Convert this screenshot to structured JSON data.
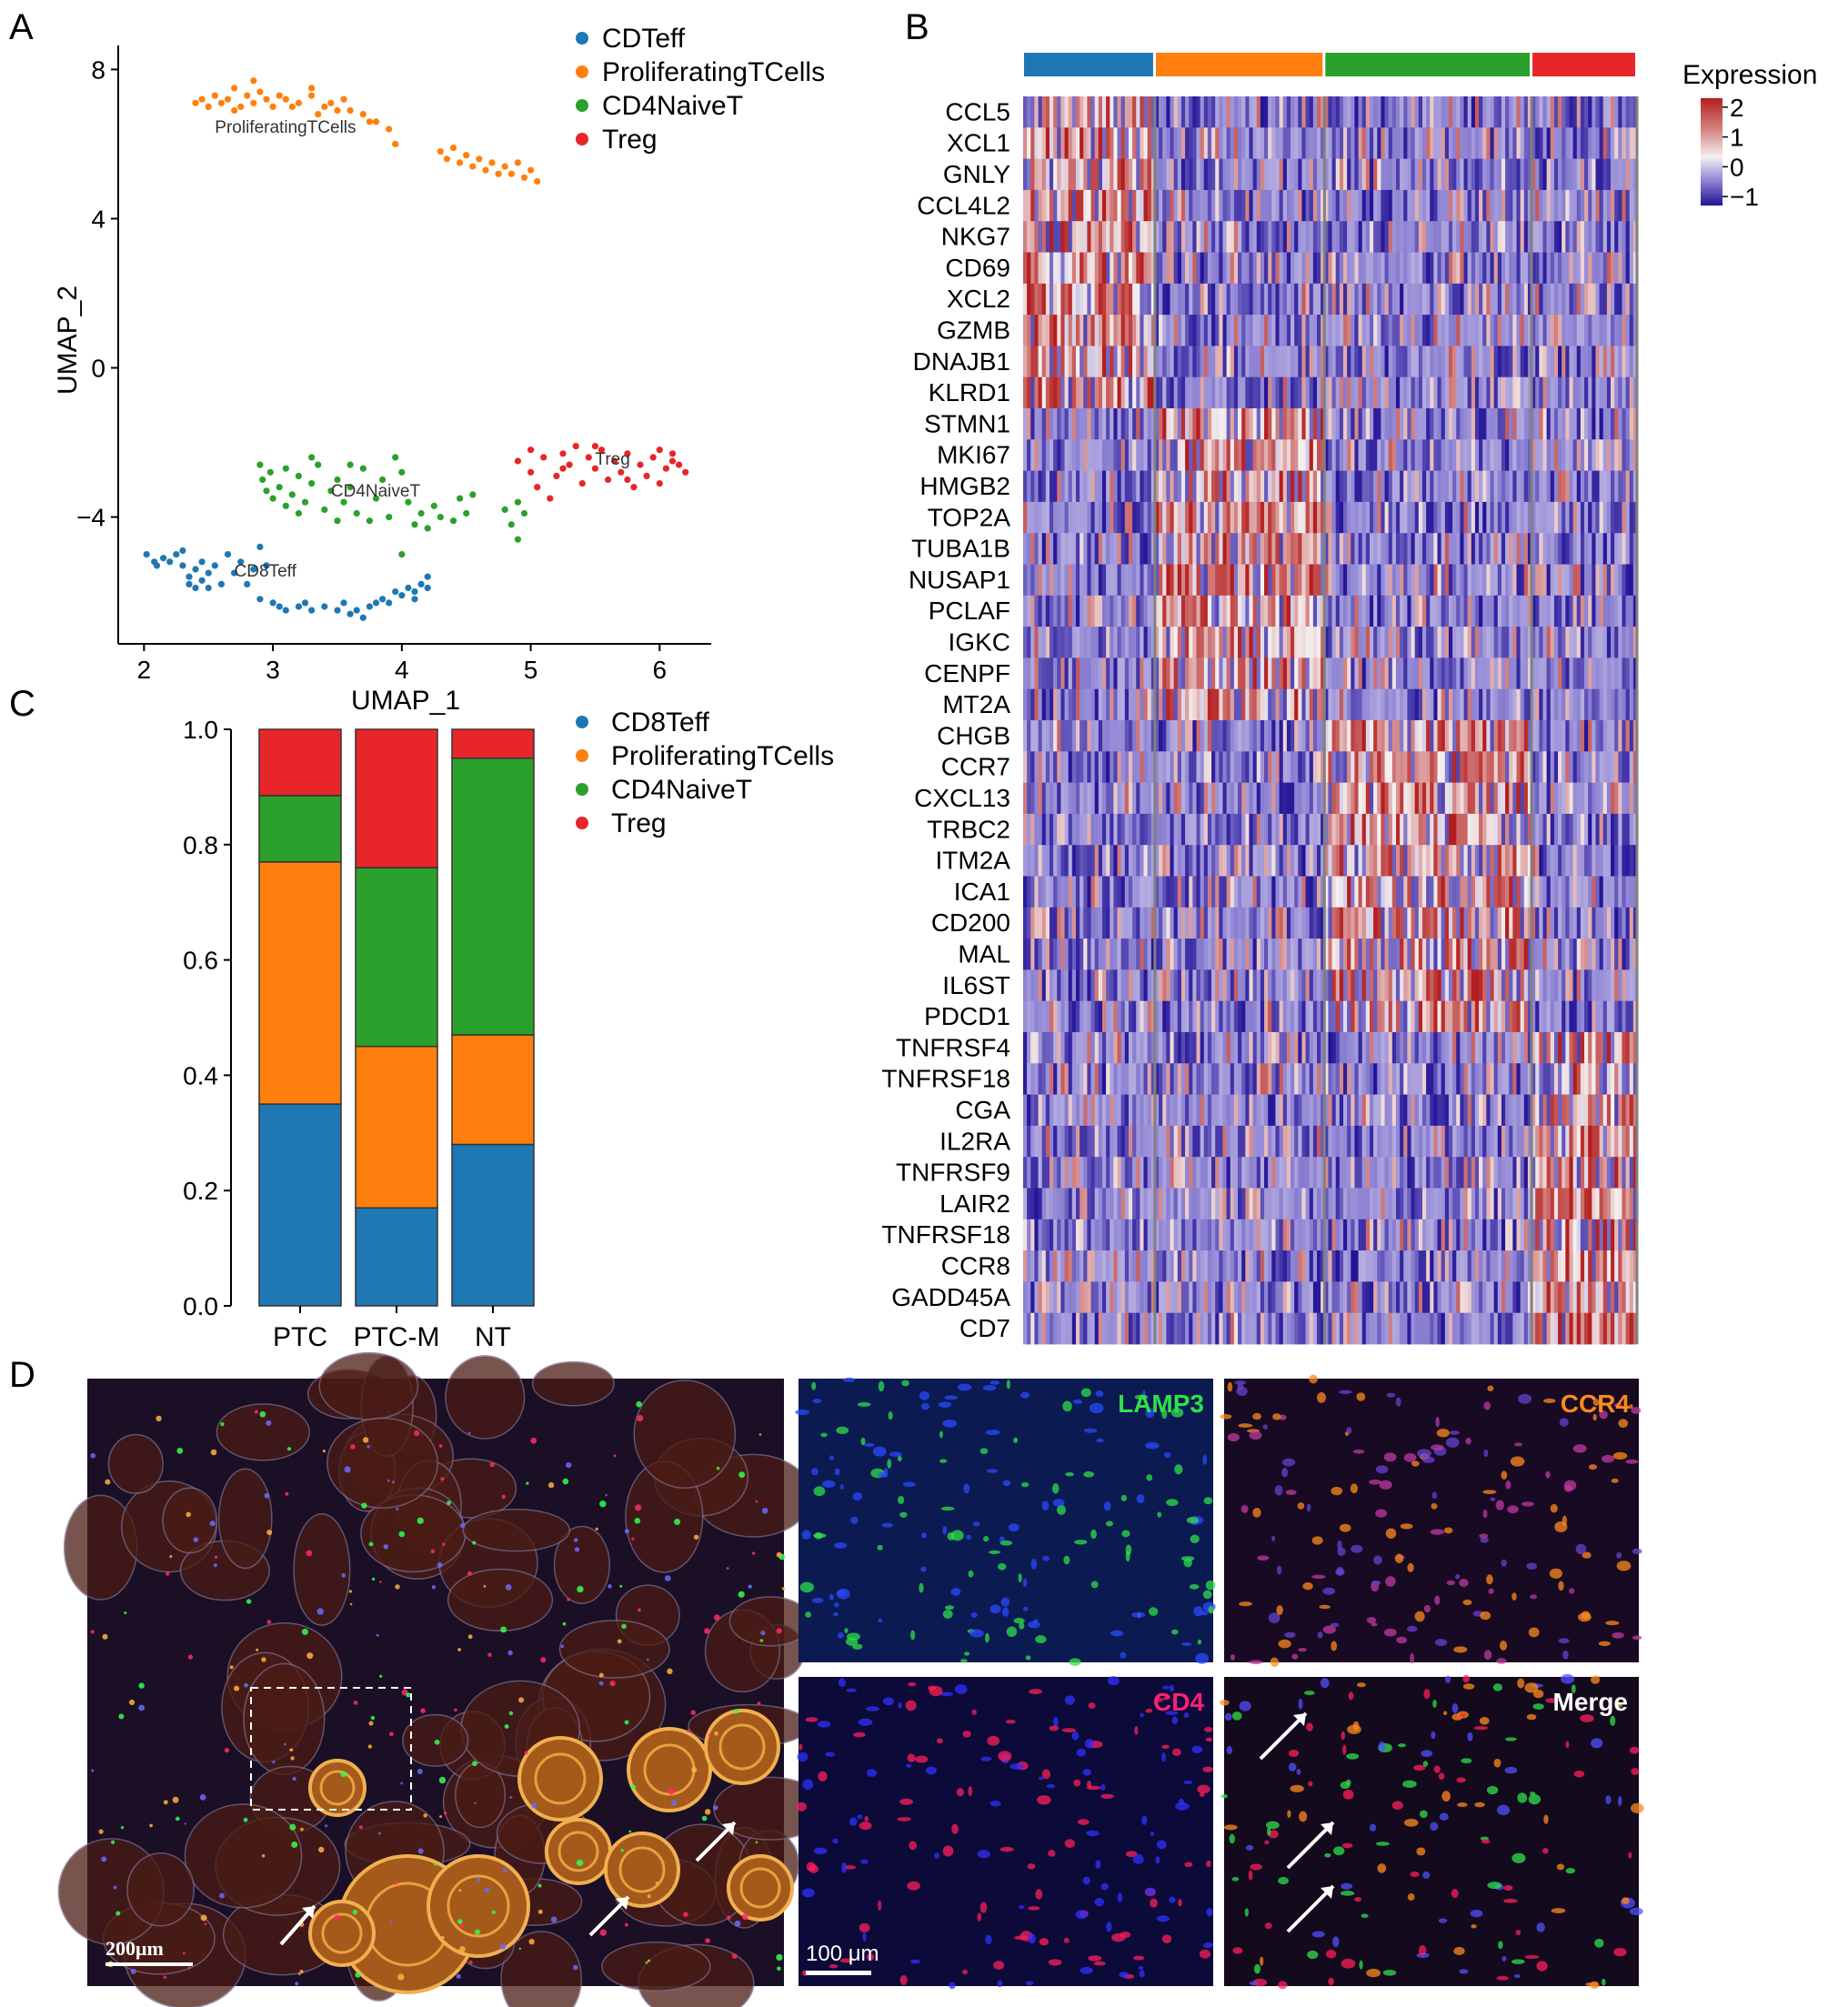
{
  "panels": {
    "a": "A",
    "b": "B",
    "c": "C",
    "d": "D"
  },
  "colors": {
    "cd8": "#1f77b4",
    "prolif": "#ff7f0e",
    "cd4": "#2ca02c",
    "treg": "#e8262a"
  },
  "umap": {
    "chart_data": {
      "type": "scatter",
      "xlabel": "UMAP_1",
      "ylabel": "UMAP_2",
      "xlim": [
        1.8,
        6.4
      ],
      "ylim": [
        -7.4,
        8.4
      ],
      "xticks": [
        "2",
        "3",
        "4",
        "5",
        "6"
      ],
      "yticks": [
        "8",
        "4",
        "0",
        "−4"
      ],
      "legend_position": "right",
      "legend": [
        "CDTeff",
        "ProliferatingTCells",
        "CD4NaiveT",
        "Treg"
      ],
      "cluster_labels": [
        "ProliferatingTCells",
        "CD4NaiveT",
        "Treg",
        "CD8Teff"
      ],
      "series": [
        {
          "name": "CDTeff",
          "color": "#1f77b4",
          "points": [
            [
              2.02,
              -5.0
            ],
            [
              2.08,
              -5.2
            ],
            [
              2.1,
              -5.3
            ],
            [
              2.15,
              -5.1
            ],
            [
              2.2,
              -5.2
            ],
            [
              2.25,
              -5.0
            ],
            [
              2.3,
              -5.3
            ],
            [
              2.3,
              -4.9
            ],
            [
              2.35,
              -5.6
            ],
            [
              2.35,
              -5.8
            ],
            [
              2.4,
              -5.9
            ],
            [
              2.4,
              -5.4
            ],
            [
              2.45,
              -5.2
            ],
            [
              2.45,
              -5.7
            ],
            [
              2.5,
              -5.9
            ],
            [
              2.5,
              -5.5
            ],
            [
              2.55,
              -5.3
            ],
            [
              2.6,
              -5.8
            ],
            [
              2.65,
              -5.0
            ],
            [
              2.7,
              -5.5
            ],
            [
              2.75,
              -5.2
            ],
            [
              2.8,
              -5.8
            ],
            [
              2.85,
              -5.4
            ],
            [
              2.9,
              -4.8
            ],
            [
              2.95,
              -5.3
            ],
            [
              2.9,
              -6.2
            ],
            [
              3.0,
              -6.3
            ],
            [
              3.05,
              -6.4
            ],
            [
              3.1,
              -6.5
            ],
            [
              3.2,
              -6.4
            ],
            [
              3.25,
              -6.3
            ],
            [
              3.3,
              -6.5
            ],
            [
              3.4,
              -6.4
            ],
            [
              3.5,
              -6.5
            ],
            [
              3.55,
              -6.3
            ],
            [
              3.6,
              -6.6
            ],
            [
              3.65,
              -6.5
            ],
            [
              3.7,
              -6.7
            ],
            [
              3.75,
              -6.4
            ],
            [
              3.8,
              -6.3
            ],
            [
              3.85,
              -6.2
            ],
            [
              3.9,
              -6.3
            ],
            [
              3.95,
              -6.0
            ],
            [
              4.0,
              -6.1
            ],
            [
              4.05,
              -5.9
            ],
            [
              4.1,
              -6.0
            ],
            [
              4.15,
              -5.8
            ],
            [
              4.2,
              -5.6
            ],
            [
              4.2,
              -5.9
            ],
            [
              4.1,
              -6.2
            ]
          ]
        },
        {
          "name": "ProliferatingTCells",
          "color": "#ff7f0e",
          "points": [
            [
              2.4,
              7.1
            ],
            [
              2.45,
              7.2
            ],
            [
              2.5,
              7.0
            ],
            [
              2.55,
              7.3
            ],
            [
              2.6,
              7.1
            ],
            [
              2.65,
              7.2
            ],
            [
              2.7,
              6.9
            ],
            [
              2.7,
              7.5
            ],
            [
              2.75,
              7.0
            ],
            [
              2.8,
              7.3
            ],
            [
              2.85,
              7.1
            ],
            [
              2.9,
              7.4
            ],
            [
              2.95,
              7.2
            ],
            [
              3.0,
              7.0
            ],
            [
              3.05,
              7.3
            ],
            [
              3.1,
              7.2
            ],
            [
              3.15,
              7.0
            ],
            [
              3.2,
              7.1
            ],
            [
              3.3,
              7.3
            ],
            [
              3.35,
              6.8
            ],
            [
              3.4,
              7.0
            ],
            [
              3.45,
              7.1
            ],
            [
              3.5,
              6.9
            ],
            [
              3.55,
              7.2
            ],
            [
              3.6,
              6.9
            ],
            [
              3.7,
              6.8
            ],
            [
              3.75,
              6.6
            ],
            [
              3.8,
              6.6
            ],
            [
              3.9,
              6.4
            ],
            [
              3.95,
              6.0
            ],
            [
              4.3,
              5.8
            ],
            [
              4.35,
              5.6
            ],
            [
              4.4,
              5.9
            ],
            [
              4.45,
              5.5
            ],
            [
              4.5,
              5.7
            ],
            [
              4.55,
              5.4
            ],
            [
              4.6,
              5.6
            ],
            [
              4.65,
              5.3
            ],
            [
              4.7,
              5.5
            ],
            [
              4.75,
              5.2
            ],
            [
              4.8,
              5.4
            ],
            [
              4.85,
              5.2
            ],
            [
              4.9,
              5.5
            ],
            [
              4.95,
              5.1
            ],
            [
              5.05,
              5.0
            ],
            [
              5.0,
              5.3
            ],
            [
              2.85,
              7.7
            ],
            [
              3.3,
              7.5
            ]
          ]
        },
        {
          "name": "CD4NaiveT",
          "color": "#2ca02c",
          "points": [
            [
              2.9,
              -2.6
            ],
            [
              2.92,
              -3.0
            ],
            [
              2.95,
              -3.3
            ],
            [
              2.98,
              -2.8
            ],
            [
              3.0,
              -3.5
            ],
            [
              3.05,
              -3.2
            ],
            [
              3.1,
              -2.7
            ],
            [
              3.1,
              -3.7
            ],
            [
              3.15,
              -3.4
            ],
            [
              3.2,
              -2.9
            ],
            [
              3.2,
              -3.9
            ],
            [
              3.25,
              -3.6
            ],
            [
              3.3,
              -3.1
            ],
            [
              3.35,
              -2.6
            ],
            [
              3.4,
              -3.8
            ],
            [
              3.45,
              -3.3
            ],
            [
              3.5,
              -3.0
            ],
            [
              3.5,
              -4.1
            ],
            [
              3.55,
              -3.6
            ],
            [
              3.6,
              -3.2
            ],
            [
              3.65,
              -3.9
            ],
            [
              3.7,
              -2.7
            ],
            [
              3.75,
              -4.1
            ],
            [
              3.8,
              -3.5
            ],
            [
              3.85,
              -3.0
            ],
            [
              3.9,
              -4.0
            ],
            [
              3.95,
              -2.4
            ],
            [
              4.0,
              -2.8
            ],
            [
              4.05,
              -3.6
            ],
            [
              4.1,
              -4.2
            ],
            [
              4.15,
              -3.9
            ],
            [
              4.2,
              -4.3
            ],
            [
              4.25,
              -3.7
            ],
            [
              4.3,
              -4.0
            ],
            [
              4.4,
              -4.1
            ],
            [
              4.45,
              -3.5
            ],
            [
              4.5,
              -3.9
            ],
            [
              4.55,
              -3.4
            ],
            [
              4.8,
              -3.8
            ],
            [
              4.85,
              -4.2
            ],
            [
              4.9,
              -3.6
            ],
            [
              4.9,
              -4.6
            ],
            [
              4.95,
              -3.9
            ],
            [
              4.0,
              -5.0
            ],
            [
              3.3,
              -2.4
            ],
            [
              3.6,
              -2.6
            ]
          ]
        },
        {
          "name": "Treg",
          "color": "#e8262a",
          "points": [
            [
              4.9,
              -2.5
            ],
            [
              5.0,
              -2.8
            ],
            [
              5.05,
              -3.2
            ],
            [
              5.1,
              -2.4
            ],
            [
              5.15,
              -3.5
            ],
            [
              5.2,
              -2.9
            ],
            [
              5.25,
              -2.3
            ],
            [
              5.3,
              -2.6
            ],
            [
              5.35,
              -2.1
            ],
            [
              5.4,
              -3.1
            ],
            [
              5.45,
              -2.4
            ],
            [
              5.5,
              -2.7
            ],
            [
              5.55,
              -2.2
            ],
            [
              5.6,
              -3.0
            ],
            [
              5.65,
              -2.5
            ],
            [
              5.7,
              -2.8
            ],
            [
              5.75,
              -2.3
            ],
            [
              5.8,
              -3.2
            ],
            [
              5.85,
              -2.6
            ],
            [
              5.9,
              -2.9
            ],
            [
              5.95,
              -2.4
            ],
            [
              6.0,
              -2.2
            ],
            [
              6.05,
              -2.7
            ],
            [
              6.1,
              -2.5
            ],
            [
              6.15,
              -2.6
            ],
            [
              6.2,
              -2.8
            ],
            [
              5.5,
              -2.1
            ],
            [
              5.75,
              -3.0
            ],
            [
              5.25,
              -2.7
            ],
            [
              5.0,
              -2.2
            ],
            [
              6.0,
              -3.1
            ],
            [
              6.1,
              -2.3
            ]
          ]
        }
      ]
    }
  },
  "heatmap": {
    "chart_data": {
      "type": "heatmap",
      "legend_title": "Expression",
      "scale_ticks": [
        "2",
        "1",
        "0",
        "−1"
      ],
      "value_range": [
        -1.3,
        2.3
      ],
      "groups": [
        {
          "name": "CD8Teff",
          "color": "#1f77b4",
          "cells": 35
        },
        {
          "name": "ProliferatingTCells",
          "color": "#ff7f0e",
          "cells": 45
        },
        {
          "name": "CD4NaiveT",
          "color": "#2ca02c",
          "cells": 55
        },
        {
          "name": "Treg",
          "color": "#e8262a",
          "cells": 28
        }
      ],
      "genes": [
        "CCL5",
        "XCL1",
        "GNLY",
        "CCL4L2",
        "NKG7",
        "CD69",
        "XCL2",
        "GZMB",
        "DNAJB1",
        "KLRD1",
        "STMN1",
        "MKI67",
        "HMGB2",
        "TOP2A",
        "TUBA1B",
        "NUSAP1",
        "PCLAF",
        "IGKC",
        "CENPF",
        "MT2A",
        "CHGB",
        "CCR7",
        "CXCL13",
        "TRBC2",
        "ITM2A",
        "ICA1",
        "CD200",
        "MAL",
        "IL6ST",
        "PDCD1",
        "TNFRSF4",
        "TNFRSF18",
        "CGA",
        "IL2RA",
        "TNFRSF9",
        "LAIR2",
        "TNFRSF18",
        "CCR8",
        "GADD45A",
        "CD7"
      ],
      "gene_marker_group": [
        0,
        0,
        0,
        0,
        0,
        0,
        0,
        0,
        0,
        0,
        1,
        1,
        1,
        1,
        1,
        1,
        1,
        1,
        1,
        1,
        2,
        2,
        2,
        2,
        2,
        2,
        2,
        2,
        2,
        2,
        3,
        3,
        3,
        3,
        3,
        3,
        3,
        3,
        3,
        3
      ]
    }
  },
  "bars": {
    "chart_data": {
      "type": "bar",
      "stacked": true,
      "categories": [
        "PTC",
        "PTC-M",
        "NT"
      ],
      "ylim": [
        0,
        1
      ],
      "yticks": [
        "0.0",
        "0.2",
        "0.4",
        "0.6",
        "0.8",
        "1.0"
      ],
      "legend_position": "right",
      "series": [
        {
          "name": "CD8Teff",
          "color": "#1f77b4",
          "values": [
            0.35,
            0.17,
            0.28
          ]
        },
        {
          "name": "ProliferatingTCells",
          "color": "#ff7f0e",
          "values": [
            0.42,
            0.28,
            0.19
          ]
        },
        {
          "name": "CD4NaiveT",
          "color": "#2ca02c",
          "values": [
            0.115,
            0.31,
            0.48
          ]
        },
        {
          "name": "Treg",
          "color": "#e8262a",
          "values": [
            0.115,
            0.24,
            0.05
          ]
        }
      ]
    }
  },
  "micro": {
    "large_scale_bar": "200μm",
    "small_scale_bar": "100 μm",
    "tiles": [
      {
        "label": "LAMP3",
        "color": "#2ee04a"
      },
      {
        "label": "CCR4",
        "color": "#ff8a1e"
      },
      {
        "label": "CD4",
        "color": "#ff1f7a"
      },
      {
        "label": "Merge",
        "color": "#ffffff"
      }
    ]
  }
}
